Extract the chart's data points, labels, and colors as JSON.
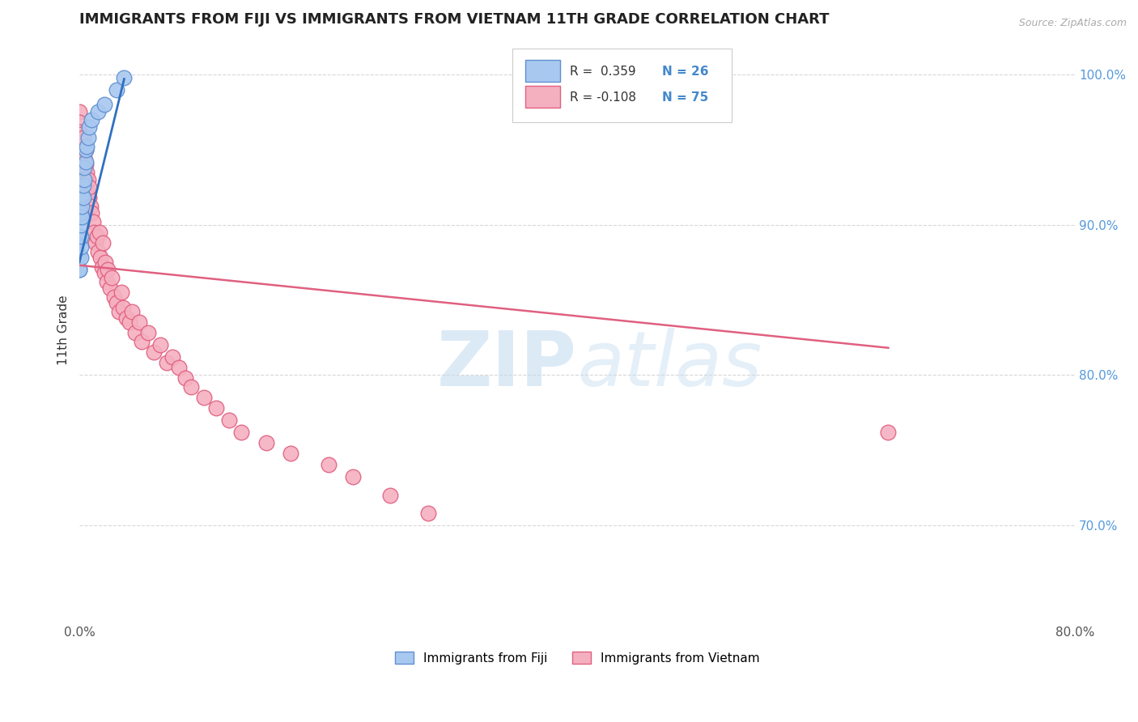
{
  "title": "IMMIGRANTS FROM FIJI VS IMMIGRANTS FROM VIETNAM 11TH GRADE CORRELATION CHART",
  "source": "Source: ZipAtlas.com",
  "ylabel": "11th Grade",
  "legend_r1": "R =  0.359",
  "legend_n1": "N = 26",
  "legend_r2": "R = -0.108",
  "legend_n2": "N = 75",
  "xmin": 0.0,
  "xmax": 0.8,
  "ymin": 0.635,
  "ymax": 1.025,
  "yticks": [
    0.7,
    0.8,
    0.9,
    1.0
  ],
  "ytick_labels": [
    "70.0%",
    "80.0%",
    "90.0%",
    "100.0%"
  ],
  "fiji_color": "#a8c8f0",
  "vietnam_color": "#f5b0c0",
  "fiji_edge": "#6090d0",
  "vietnam_edge": "#e06080",
  "trend_fiji_color": "#3070c0",
  "trend_vietnam_color": "#e06080",
  "fiji_trend_x0": 0.0,
  "fiji_trend_x1": 0.036,
  "fiji_trend_y0": 0.875,
  "fiji_trend_y1": 0.997,
  "vietnam_trend_x0": 0.0,
  "vietnam_trend_x1": 0.65,
  "vietnam_trend_y0": 0.873,
  "vietnam_trend_y1": 0.818,
  "watermark_zip": "ZIP",
  "watermark_atlas": "atlas",
  "background_color": "#ffffff",
  "grid_color": "#d8d8d8"
}
